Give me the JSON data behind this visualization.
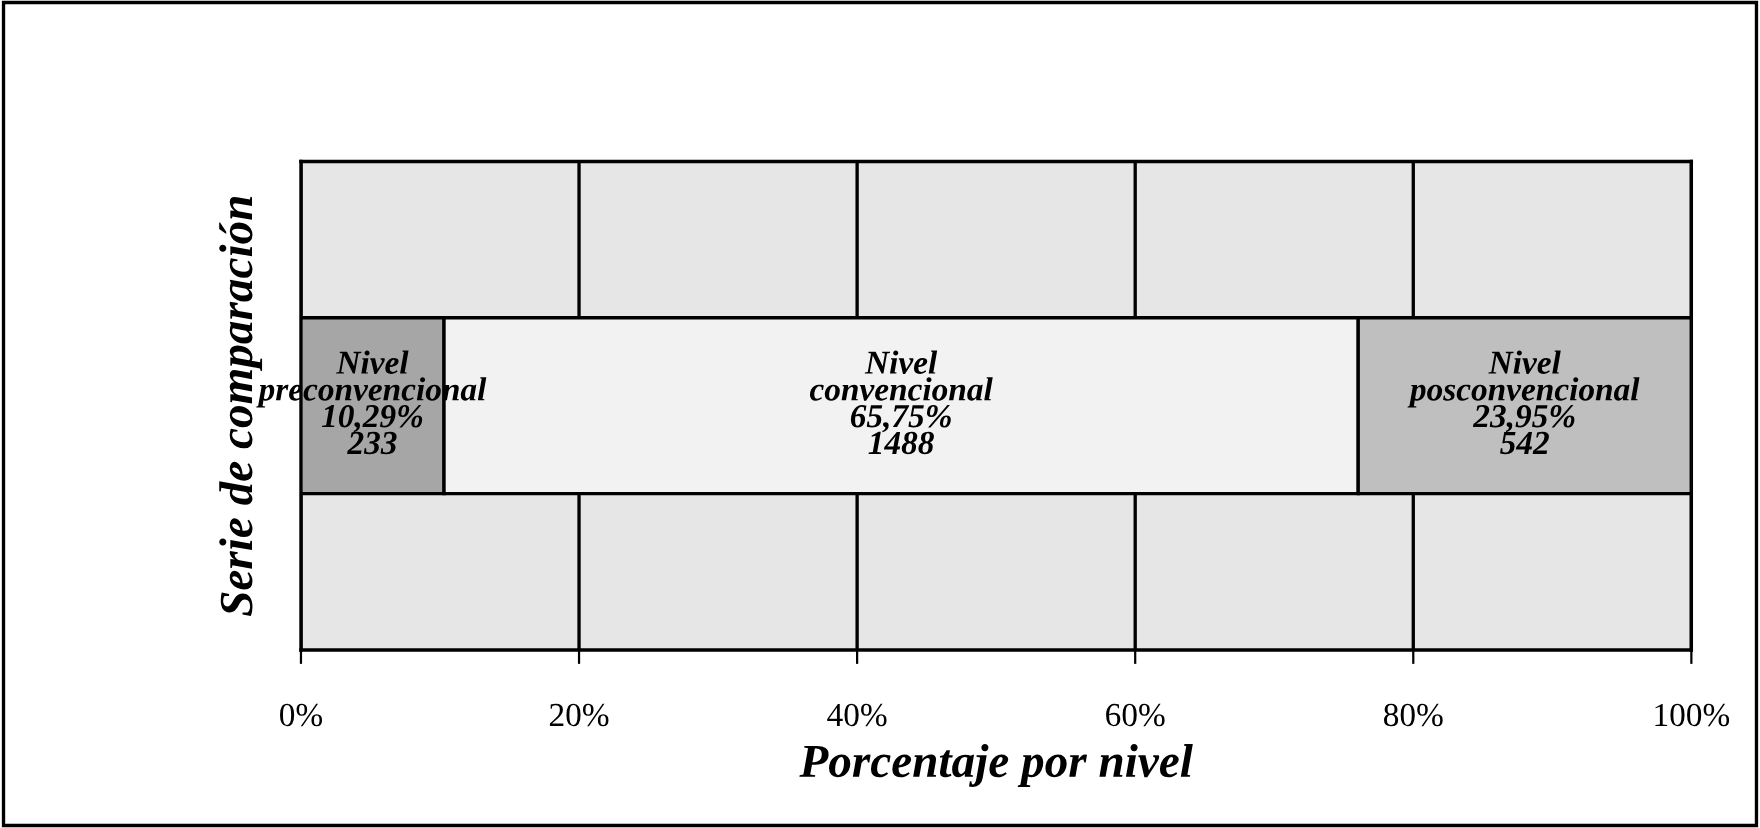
{
  "chart_data": {
    "type": "bar",
    "orientation": "horizontal",
    "stacked": true,
    "ylabel": "Serie de comparación",
    "xlabel": "Porcentaje por nivel",
    "categories": [
      null
    ],
    "series": [
      {
        "name": "Nivel\npreconvencional",
        "color": "#a6a6a6",
        "values": [
          10.29
        ],
        "value_labels": [
          "10,29%\n233"
        ]
      },
      {
        "name": "Nivel\nconvencional",
        "color": "#f2f2f2",
        "values": [
          65.75
        ],
        "value_labels": [
          "65,75%\n1488"
        ]
      },
      {
        "name": "Nivel\nposconvencional",
        "color": "#bfbfbf",
        "values": [
          23.95
        ],
        "value_labels": [
          "23,95%\n542"
        ]
      }
    ],
    "xlim": [
      0,
      100
    ],
    "xticks": [
      {
        "value": 0,
        "label": "0%"
      },
      {
        "value": 20,
        "label": "20%"
      },
      {
        "value": 40,
        "label": "40%"
      },
      {
        "value": 60,
        "label": "60%"
      },
      {
        "value": 80,
        "label": "80%"
      },
      {
        "value": 100,
        "label": "100%"
      }
    ],
    "grid": "x",
    "legend": false
  }
}
